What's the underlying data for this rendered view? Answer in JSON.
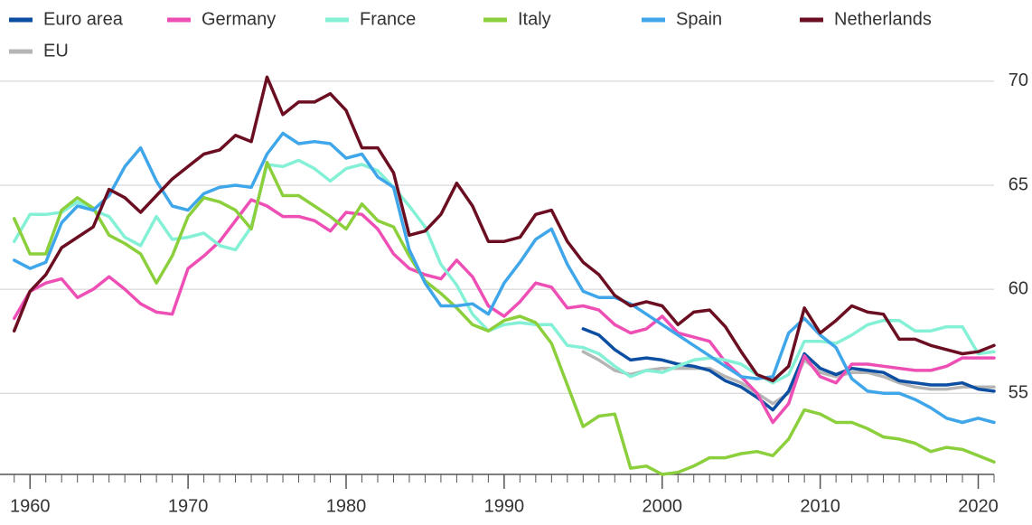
{
  "chart_data": {
    "type": "line",
    "x": [
      1959,
      1960,
      1961,
      1962,
      1963,
      1964,
      1965,
      1966,
      1967,
      1968,
      1969,
      1970,
      1971,
      1972,
      1973,
      1974,
      1975,
      1976,
      1977,
      1978,
      1979,
      1980,
      1981,
      1982,
      1983,
      1984,
      1985,
      1986,
      1987,
      1988,
      1989,
      1990,
      1991,
      1992,
      1993,
      1994,
      1995,
      1996,
      1997,
      1998,
      1999,
      2000,
      2001,
      2002,
      2003,
      2004,
      2005,
      2006,
      2007,
      2008,
      2009,
      2010,
      2011,
      2012,
      2013,
      2014,
      2015,
      2016,
      2017,
      2018,
      2019,
      2020,
      2021
    ],
    "xlim": [
      1958.1,
      2021
    ],
    "xticks": [
      1960,
      1970,
      1980,
      1990,
      2000,
      2010,
      2020
    ],
    "ylim": [
      51.1,
      71.3
    ],
    "yticks": [
      55,
      60,
      65,
      70
    ],
    "grid": true,
    "series": [
      {
        "name": "Euro area",
        "color": "#0b4ea2",
        "values": [
          null,
          null,
          null,
          null,
          null,
          null,
          null,
          null,
          null,
          null,
          null,
          null,
          null,
          null,
          null,
          null,
          null,
          null,
          null,
          null,
          null,
          null,
          null,
          null,
          null,
          null,
          null,
          null,
          null,
          null,
          null,
          null,
          null,
          null,
          null,
          null,
          58.1,
          57.8,
          57.1,
          56.6,
          56.7,
          56.6,
          56.4,
          56.3,
          56.1,
          55.6,
          55.3,
          54.8,
          54.2,
          55.1,
          56.9,
          56.2,
          55.9,
          56.2,
          56.1,
          56.0,
          55.6,
          55.5,
          55.4,
          55.4,
          55.5,
          55.2,
          55.1
        ]
      },
      {
        "name": "Germany",
        "color": "#ee4fb5",
        "values": [
          58.6,
          59.9,
          60.3,
          60.5,
          59.6,
          60.0,
          60.6,
          60.0,
          59.3,
          58.9,
          58.8,
          61.0,
          61.6,
          62.3,
          63.3,
          64.3,
          64.0,
          63.5,
          63.5,
          63.3,
          62.8,
          63.7,
          63.6,
          62.9,
          61.7,
          61.0,
          60.7,
          60.5,
          61.4,
          60.6,
          59.2,
          58.7,
          59.4,
          60.3,
          60.1,
          59.1,
          59.2,
          59.0,
          58.3,
          57.9,
          58.1,
          58.7,
          57.9,
          57.7,
          57.5,
          56.5,
          55.8,
          55.0,
          53.6,
          54.5,
          56.8,
          55.8,
          55.5,
          56.4,
          56.4,
          56.3,
          56.2,
          56.1,
          56.1,
          56.3,
          56.7,
          56.7,
          56.7
        ]
      },
      {
        "name": "France",
        "color": "#84f0d6",
        "values": [
          62.3,
          63.6,
          63.6,
          63.7,
          64.2,
          63.8,
          63.5,
          62.5,
          62.1,
          63.5,
          62.4,
          62.5,
          62.7,
          62.1,
          61.9,
          63.0,
          66.0,
          65.9,
          66.2,
          65.8,
          65.2,
          65.8,
          66.0,
          65.7,
          64.9,
          64.0,
          63.0,
          61.2,
          60.2,
          58.8,
          58.0,
          58.3,
          58.4,
          58.3,
          58.3,
          57.3,
          57.2,
          56.9,
          56.3,
          55.8,
          56.1,
          56.0,
          56.3,
          56.6,
          56.7,
          56.6,
          56.4,
          55.9,
          55.5,
          55.9,
          57.5,
          57.5,
          57.4,
          57.8,
          58.3,
          58.5,
          58.5,
          58.0,
          58.0,
          58.2,
          58.2,
          56.9,
          57.0
        ]
      },
      {
        "name": "Italy",
        "color": "#8ccf3c",
        "values": [
          63.4,
          61.7,
          61.7,
          63.8,
          64.4,
          63.9,
          62.6,
          62.2,
          61.7,
          60.3,
          61.6,
          63.5,
          64.4,
          64.2,
          63.8,
          62.9,
          66.1,
          64.5,
          64.5,
          64.0,
          63.5,
          62.9,
          64.1,
          63.3,
          63.0,
          61.6,
          60.4,
          59.8,
          59.1,
          58.3,
          58.0,
          58.5,
          58.7,
          58.4,
          57.4,
          55.4,
          53.4,
          53.9,
          54.0,
          51.4,
          51.5,
          51.1,
          51.2,
          51.5,
          51.9,
          51.9,
          52.1,
          52.2,
          52.0,
          52.8,
          54.2,
          54.0,
          53.6,
          53.6,
          53.3,
          52.9,
          52.8,
          52.6,
          52.2,
          52.4,
          52.3,
          52.0,
          51.7
        ]
      },
      {
        "name": "Spain",
        "color": "#3fa6ea",
        "values": [
          61.4,
          61.0,
          61.3,
          63.2,
          64.0,
          63.8,
          64.5,
          65.9,
          66.8,
          65.2,
          64.0,
          63.8,
          64.6,
          64.9,
          65.0,
          64.9,
          66.5,
          67.5,
          67.0,
          67.1,
          67.0,
          66.3,
          66.5,
          65.4,
          64.9,
          61.9,
          60.3,
          59.2,
          59.2,
          59.3,
          58.8,
          60.3,
          61.3,
          62.4,
          62.9,
          61.2,
          59.9,
          59.6,
          59.6,
          59.3,
          58.8,
          58.3,
          57.8,
          57.3,
          56.8,
          56.3,
          55.8,
          55.7,
          55.8,
          57.9,
          58.6,
          57.8,
          57.2,
          55.7,
          55.1,
          55.0,
          55.0,
          54.7,
          54.3,
          53.8,
          53.6,
          53.8,
          53.6
        ]
      },
      {
        "name": "Netherlands",
        "color": "#6b0e22",
        "values": [
          58.0,
          59.9,
          60.7,
          62.0,
          62.5,
          63.0,
          64.8,
          64.4,
          63.7,
          64.5,
          65.3,
          65.9,
          66.5,
          66.7,
          67.4,
          67.1,
          70.2,
          68.4,
          69.0,
          69.0,
          69.4,
          68.6,
          66.8,
          66.8,
          65.6,
          62.6,
          62.8,
          63.6,
          65.1,
          64.0,
          62.3,
          62.3,
          62.5,
          63.6,
          63.8,
          62.3,
          61.3,
          60.7,
          59.7,
          59.2,
          59.4,
          59.2,
          58.3,
          58.9,
          59.0,
          58.2,
          57.0,
          55.9,
          55.6,
          56.3,
          59.1,
          57.9,
          58.5,
          59.2,
          58.9,
          58.8,
          57.6,
          57.6,
          57.3,
          57.1,
          56.9,
          57.0,
          57.3
        ]
      },
      {
        "name": "EU",
        "color": "#b5b5b5",
        "values": [
          null,
          null,
          null,
          null,
          null,
          null,
          null,
          null,
          null,
          null,
          null,
          null,
          null,
          null,
          null,
          null,
          null,
          null,
          null,
          null,
          null,
          null,
          null,
          null,
          null,
          null,
          null,
          null,
          null,
          null,
          null,
          null,
          null,
          null,
          null,
          null,
          57.0,
          56.6,
          56.1,
          55.9,
          56.1,
          56.2,
          56.2,
          56.2,
          56.2,
          55.8,
          55.5,
          55.0,
          54.5,
          55.0,
          56.6,
          56.0,
          55.8,
          56.0,
          56.0,
          55.8,
          55.5,
          55.3,
          55.2,
          55.2,
          55.3,
          55.3,
          55.3
        ]
      }
    ]
  }
}
